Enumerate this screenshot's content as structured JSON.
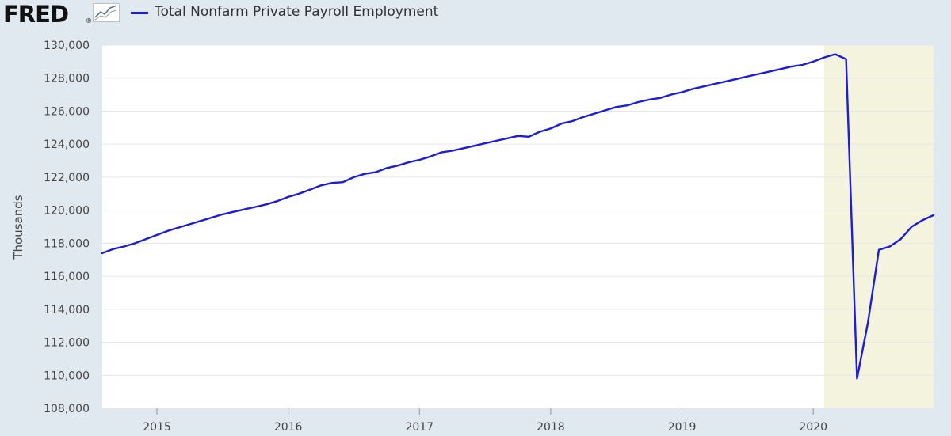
{
  "header": {
    "logo_text": "FRED",
    "logo_mark": "®",
    "logo_icon": "line-chart-icon"
  },
  "colors": {
    "background": "#e1e9f0",
    "plot_background": "#ffffff",
    "recession_shade": "#f4f4de",
    "series_line": "#1c1cd9",
    "grid": "#e3e6ea"
  },
  "chart_data": {
    "type": "line",
    "title": "",
    "xlabel": "",
    "ylabel": "Thousands",
    "grid": true,
    "legend_position": "top-left",
    "y_ticks": [
      "108,000",
      "110,000",
      "112,000",
      "114,000",
      "116,000",
      "118,000",
      "120,000",
      "122,000",
      "124,000",
      "126,000",
      "128,000",
      "130,000"
    ],
    "y_tick_values": [
      108000,
      110000,
      112000,
      114000,
      116000,
      118000,
      120000,
      122000,
      124000,
      126000,
      128000,
      130000
    ],
    "ylim": [
      108000,
      130000
    ],
    "xlim": [
      "2014-08",
      "2020-12"
    ],
    "x_ticks": [
      "2015",
      "2016",
      "2017",
      "2018",
      "2019",
      "2020"
    ],
    "x_tick_dates": [
      "2015-01",
      "2016-01",
      "2017-01",
      "2018-01",
      "2019-01",
      "2020-01"
    ],
    "shaded_regions": [
      {
        "start": "2020-02",
        "end": "2020-12"
      }
    ],
    "series": [
      {
        "name": "Total Nonfarm Private Payroll Employment",
        "x": [
          "2014-08",
          "2014-09",
          "2014-10",
          "2014-11",
          "2014-12",
          "2015-01",
          "2015-02",
          "2015-03",
          "2015-04",
          "2015-05",
          "2015-06",
          "2015-07",
          "2015-08",
          "2015-09",
          "2015-10",
          "2015-11",
          "2015-12",
          "2016-01",
          "2016-02",
          "2016-03",
          "2016-04",
          "2016-05",
          "2016-06",
          "2016-07",
          "2016-08",
          "2016-09",
          "2016-10",
          "2016-11",
          "2016-12",
          "2017-01",
          "2017-02",
          "2017-03",
          "2017-04",
          "2017-05",
          "2017-06",
          "2017-07",
          "2017-08",
          "2017-09",
          "2017-10",
          "2017-11",
          "2017-12",
          "2018-01",
          "2018-02",
          "2018-03",
          "2018-04",
          "2018-05",
          "2018-06",
          "2018-07",
          "2018-08",
          "2018-09",
          "2018-10",
          "2018-11",
          "2018-12",
          "2019-01",
          "2019-02",
          "2019-03",
          "2019-04",
          "2019-05",
          "2019-06",
          "2019-07",
          "2019-08",
          "2019-09",
          "2019-10",
          "2019-11",
          "2019-12",
          "2020-01",
          "2020-02",
          "2020-03",
          "2020-04",
          "2020-05",
          "2020-06",
          "2020-07",
          "2020-08",
          "2020-09",
          "2020-10",
          "2020-11",
          "2020-12"
        ],
        "values": [
          117400,
          117650,
          117800,
          118000,
          118250,
          118500,
          118750,
          118950,
          119150,
          119350,
          119550,
          119750,
          119900,
          120050,
          120200,
          120350,
          120550,
          120800,
          121000,
          121250,
          121500,
          121650,
          121700,
          122000,
          122200,
          122300,
          122550,
          122700,
          122900,
          123050,
          123250,
          123500,
          123600,
          123750,
          123900,
          124050,
          124200,
          124350,
          124500,
          124450,
          124750,
          124950,
          125250,
          125400,
          125650,
          125850,
          126050,
          126250,
          126350,
          126550,
          126700,
          126800,
          127000,
          127150,
          127350,
          127500,
          127650,
          127800,
          127950,
          128100,
          128250,
          128400,
          128550,
          128700,
          128800,
          129000,
          129250,
          129450,
          129150,
          109800,
          113200,
          117600,
          117800,
          118250,
          119000,
          119400,
          119700
        ]
      }
    ]
  }
}
